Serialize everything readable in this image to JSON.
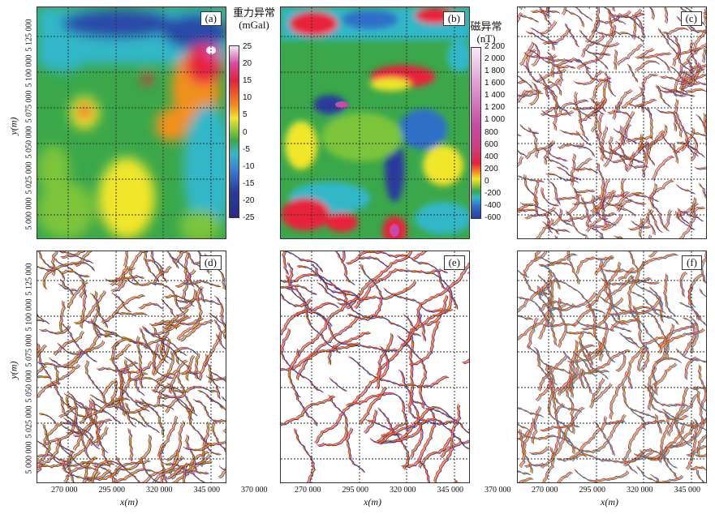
{
  "panels": {
    "a": {
      "tag": "(a)"
    },
    "b": {
      "tag": "(b)"
    },
    "c": {
      "tag": "(c)"
    },
    "d": {
      "tag": "(d)"
    },
    "e": {
      "tag": "(e)"
    },
    "f": {
      "tag": "(f)"
    }
  },
  "colorbar_gravity": {
    "title_line1": "重力异常",
    "title_line2": "(mGal)",
    "ticks": [
      "25",
      "20",
      "15",
      "10",
      "5",
      "0",
      "-5",
      "-10",
      "-15",
      "-20",
      "-25"
    ],
    "colors": [
      "#f7e8f5",
      "#d94aa5",
      "#e8213a",
      "#f2901a",
      "#f0e62a",
      "#7cc53a",
      "#3aa84a",
      "#33b7c9",
      "#3a7fd2",
      "#2b3b9d",
      "#2b2a88"
    ]
  },
  "colorbar_magnetic": {
    "title_line1": "磁异常",
    "title_line2": "(nT)",
    "ticks": [
      "2 200",
      "2 000",
      "1 800",
      "1 600",
      "1 400",
      "1 200",
      "1 000",
      "800",
      "600",
      "400",
      "200",
      "0",
      "-200",
      "-400",
      "-600"
    ],
    "colors": [
      "#f7e8f5",
      "#e7b5dc",
      "#d77ec2",
      "#c84aa8",
      "#d23a7a",
      "#e8213a",
      "#f2901a",
      "#f0e62a",
      "#8cc63a",
      "#3aa84a",
      "#33b7c9",
      "#2e6fc8",
      "#2b3b9d"
    ]
  },
  "y_axis": {
    "title": "y(m)",
    "ticks": [
      "5 125 000",
      "5 100 000",
      "5 075 000",
      "5 050 000",
      "5 025 000",
      "5 000 000"
    ]
  },
  "x_axis": {
    "title": "x(m)",
    "ticks": [
      "270 000",
      "295 000",
      "320 000",
      "345 000",
      "370 000"
    ]
  }
}
